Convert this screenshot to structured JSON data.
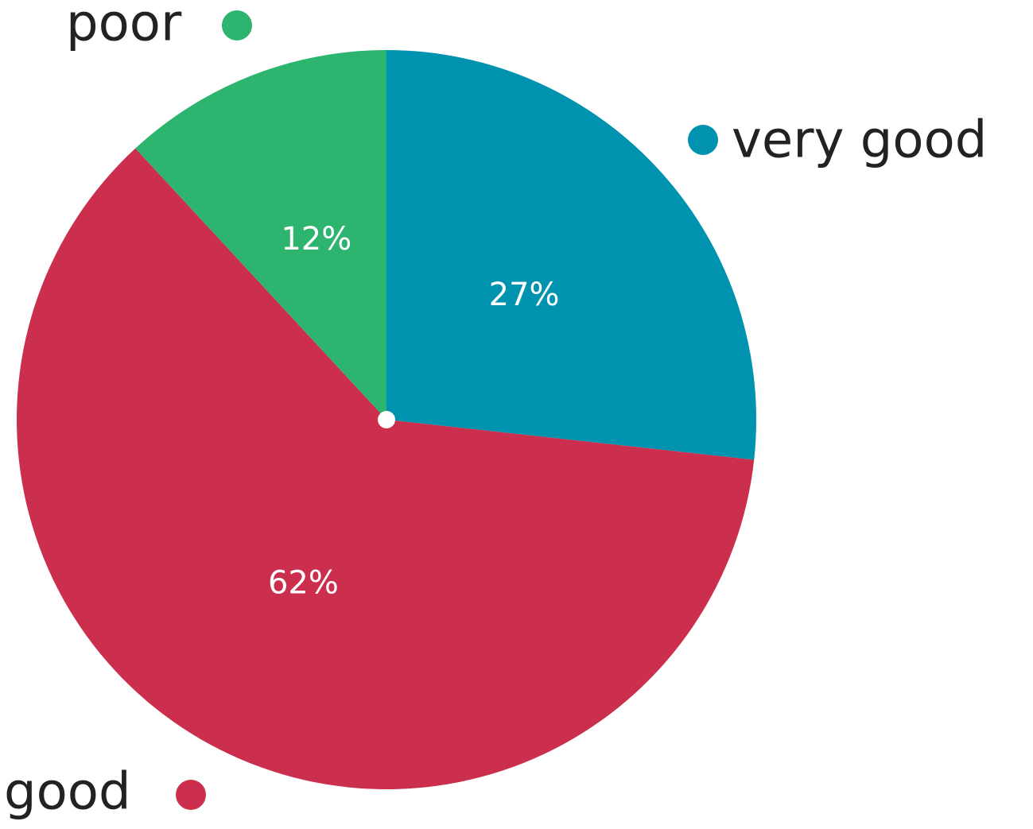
{
  "chart_data": {
    "type": "pie",
    "slices": [
      {
        "name": "very good",
        "value": 27,
        "label": "27%",
        "color": "#0093b0"
      },
      {
        "name": "good",
        "value": 62,
        "label": "62%",
        "color": "#cb2f4d"
      },
      {
        "name": "poor",
        "value": 12,
        "label": "12%",
        "color": "#2db46e"
      }
    ],
    "start_angle_deg": 0,
    "direction": "clockwise",
    "legend_placement": "around-pie",
    "center_marker_color": "#ffffff"
  }
}
